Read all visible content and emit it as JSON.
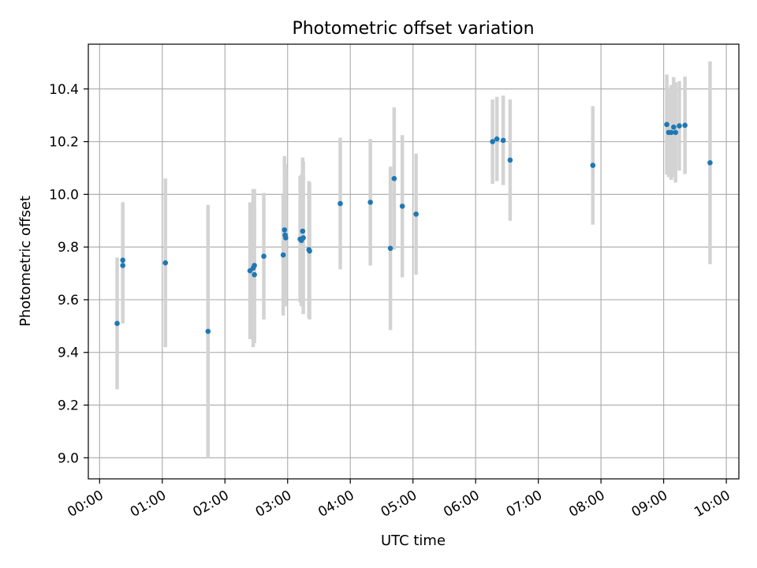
{
  "chart_data": {
    "type": "scatter",
    "title": "Photometric offset variation",
    "xlabel": "UTC time",
    "ylabel": "Photometric offset",
    "x_unit": "hours UTC",
    "xlim": [
      -0.18,
      10.2
    ],
    "ylim": [
      8.92,
      10.57
    ],
    "grid": true,
    "x_ticks": [
      0,
      1,
      2,
      3,
      4,
      5,
      6,
      7,
      8,
      9,
      10
    ],
    "x_tick_labels": [
      "00:00",
      "01:00",
      "02:00",
      "03:00",
      "04:00",
      "05:00",
      "06:00",
      "07:00",
      "08:00",
      "09:00",
      "10:00"
    ],
    "y_ticks": [
      9.0,
      9.2,
      9.4,
      9.6,
      9.8,
      10.0,
      10.2,
      10.4
    ],
    "y_tick_labels": [
      "9.0",
      "9.2",
      "9.4",
      "9.6",
      "9.8",
      "10.0",
      "10.2",
      "10.4"
    ],
    "point_color": "#1f77b4",
    "errorbar_color": "#d3d3d3",
    "points": [
      {
        "x": 0.28,
        "y": 9.51,
        "err": 0.25
      },
      {
        "x": 0.37,
        "y": 9.75,
        "err": 0.22
      },
      {
        "x": 0.37,
        "y": 9.73,
        "err": 0.22
      },
      {
        "x": 1.05,
        "y": 9.74,
        "err": 0.32
      },
      {
        "x": 1.73,
        "y": 9.48,
        "err": 0.48
      },
      {
        "x": 2.4,
        "y": 9.71,
        "err": 0.26
      },
      {
        "x": 2.45,
        "y": 9.72,
        "err": 0.3
      },
      {
        "x": 2.47,
        "y": 9.73,
        "err": 0.29
      },
      {
        "x": 2.47,
        "y": 9.695,
        "err": 0.26
      },
      {
        "x": 2.62,
        "y": 9.765,
        "err": 0.24
      },
      {
        "x": 2.93,
        "y": 9.77,
        "err": 0.23
      },
      {
        "x": 2.95,
        "y": 9.865,
        "err": 0.28
      },
      {
        "x": 2.96,
        "y": 9.845,
        "err": 0.27
      },
      {
        "x": 2.97,
        "y": 9.835,
        "err": 0.26
      },
      {
        "x": 3.2,
        "y": 9.83,
        "err": 0.24
      },
      {
        "x": 3.22,
        "y": 9.825,
        "err": 0.25
      },
      {
        "x": 3.24,
        "y": 9.86,
        "err": 0.28
      },
      {
        "x": 3.25,
        "y": 9.835,
        "err": 0.29
      },
      {
        "x": 3.34,
        "y": 9.79,
        "err": 0.26
      },
      {
        "x": 3.35,
        "y": 9.785,
        "err": 0.26
      },
      {
        "x": 3.84,
        "y": 9.965,
        "err": 0.25
      },
      {
        "x": 4.32,
        "y": 9.97,
        "err": 0.24
      },
      {
        "x": 4.64,
        "y": 9.795,
        "err": 0.31
      },
      {
        "x": 4.7,
        "y": 10.06,
        "err": 0.27
      },
      {
        "x": 4.83,
        "y": 9.955,
        "err": 0.27
      },
      {
        "x": 5.05,
        "y": 9.925,
        "err": 0.23
      },
      {
        "x": 6.27,
        "y": 10.2,
        "err": 0.16
      },
      {
        "x": 6.34,
        "y": 10.21,
        "err": 0.16
      },
      {
        "x": 6.44,
        "y": 10.205,
        "err": 0.17
      },
      {
        "x": 6.55,
        "y": 10.13,
        "err": 0.23
      },
      {
        "x": 7.87,
        "y": 10.11,
        "err": 0.225
      },
      {
        "x": 9.05,
        "y": 10.265,
        "err": 0.19
      },
      {
        "x": 9.08,
        "y": 10.235,
        "err": 0.17
      },
      {
        "x": 9.12,
        "y": 10.235,
        "err": 0.18
      },
      {
        "x": 9.16,
        "y": 10.255,
        "err": 0.19
      },
      {
        "x": 9.19,
        "y": 10.235,
        "err": 0.19
      },
      {
        "x": 9.25,
        "y": 10.26,
        "err": 0.17
      },
      {
        "x": 9.34,
        "y": 10.262,
        "err": 0.185
      },
      {
        "x": 9.74,
        "y": 10.12,
        "err": 0.385
      }
    ]
  }
}
